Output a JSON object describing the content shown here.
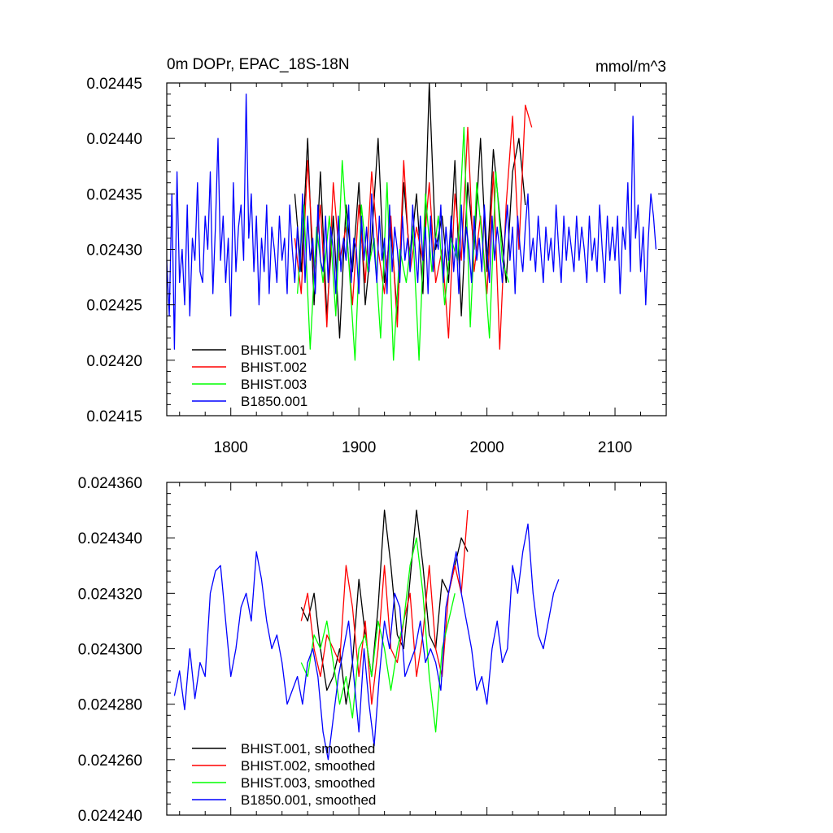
{
  "chart_data": [
    {
      "type": "line",
      "title": "0m DOPr, EPAC_18S-18N",
      "units": "mmol/m^3",
      "xlim": [
        1750,
        2140
      ],
      "ylim": [
        0.02415,
        0.02445
      ],
      "x_ticks": [
        1800,
        1900,
        2000,
        2100
      ],
      "x_tick_labels": [
        "1800",
        "1900",
        "2000",
        "2100"
      ],
      "y_ticks": [
        0.02415,
        0.0242,
        0.02425,
        0.0243,
        0.02435,
        0.0244,
        0.02445
      ],
      "y_tick_labels": [
        "0.02415",
        "0.02420",
        "0.02425",
        "0.02430",
        "0.02435",
        "0.02440",
        "0.02445"
      ],
      "legend_position": "bottom-left",
      "series": [
        {
          "name": "BHIST.001",
          "color": "#000000",
          "x_start": 1850,
          "x_step": 5,
          "values": [
            0.02435,
            0.02428,
            0.0244,
            0.02425,
            0.02437,
            0.02424,
            0.02433,
            0.02422,
            0.02434,
            0.02428,
            0.02436,
            0.02425,
            0.02431,
            0.0244,
            0.02427,
            0.02432,
            0.02424,
            0.02436,
            0.02429,
            0.02435,
            0.02426,
            0.02445,
            0.0243,
            0.02433,
            0.02427,
            0.02438,
            0.02424,
            0.02436,
            0.0243,
            0.0244,
            0.02428,
            0.02439,
            0.02433,
            0.02427,
            0.02437,
            0.0244,
            0.02434
          ]
        },
        {
          "name": "BHIST.002",
          "color": "#ff0000",
          "x_start": 1850,
          "x_step": 5,
          "values": [
            0.02431,
            0.02426,
            0.02438,
            0.02428,
            0.02434,
            0.02423,
            0.02436,
            0.02429,
            0.02432,
            0.02425,
            0.02434,
            0.02427,
            0.02437,
            0.0243,
            0.02426,
            0.02433,
            0.02423,
            0.02438,
            0.02428,
            0.02432,
            0.02429,
            0.02436,
            0.02427,
            0.0243,
            0.02422,
            0.02435,
            0.02429,
            0.02441,
            0.02428,
            0.02433,
            0.02426,
            0.02437,
            0.02421,
            0.02434,
            0.02442,
            0.0243,
            0.02443,
            0.02441
          ]
        },
        {
          "name": "BHIST.003",
          "color": "#00ff00",
          "x_start": 1852,
          "x_step": 5,
          "values": [
            0.02426,
            0.02434,
            0.02421,
            0.02432,
            0.02427,
            0.02433,
            0.02424,
            0.02438,
            0.02429,
            0.0242,
            0.02434,
            0.02428,
            0.02431,
            0.02422,
            0.02436,
            0.0242,
            0.0243,
            0.02427,
            0.02432,
            0.0242,
            0.02435,
            0.02428,
            0.02433,
            0.02425,
            0.02431,
            0.02429,
            0.02441,
            0.02423,
            0.02436,
            0.0243,
            0.02422,
            0.02437,
            0.02429,
            0.02427
          ]
        },
        {
          "name": "B1850.001",
          "color": "#0000ff",
          "x_start": 1750,
          "x_step": 2,
          "values": [
            0.02429,
            0.02424,
            0.02435,
            0.02421,
            0.02437,
            0.02427,
            0.0243,
            0.02425,
            0.02434,
            0.02424,
            0.02431,
            0.02429,
            0.02436,
            0.02428,
            0.02427,
            0.02433,
            0.0243,
            0.02437,
            0.02426,
            0.02432,
            0.0244,
            0.02429,
            0.02433,
            0.02427,
            0.02431,
            0.02424,
            0.02436,
            0.02428,
            0.02432,
            0.02434,
            0.02429,
            0.02444,
            0.02431,
            0.02435,
            0.02428,
            0.02433,
            0.02425,
            0.02431,
            0.02428,
            0.02434,
            0.02426,
            0.02432,
            0.0243,
            0.02427,
            0.02433,
            0.02429,
            0.02431,
            0.02426,
            0.02434,
            0.0243,
            0.02427,
            0.02432,
            0.02428,
            0.02435,
            0.02427,
            0.02433,
            0.02429,
            0.02431,
            0.02426,
            0.02434,
            0.02429,
            0.02428,
            0.02433,
            0.02427,
            0.02432,
            0.0243,
            0.02426,
            0.02433,
            0.02428,
            0.02431,
            0.02429,
            0.02434,
            0.02427,
            0.02431,
            0.0243,
            0.02426,
            0.02433,
            0.02429,
            0.02432,
            0.02428,
            0.02435,
            0.0243,
            0.02427,
            0.02433,
            0.02429,
            0.02431,
            0.02426,
            0.02434,
            0.02428,
            0.02432,
            0.0243,
            0.02427,
            0.02433,
            0.02429,
            0.02431,
            0.02428,
            0.02434,
            0.0243,
            0.02427,
            0.02433,
            0.02429,
            0.02432,
            0.02426,
            0.02433,
            0.02428,
            0.02431,
            0.0243,
            0.02434,
            0.02427,
            0.02432,
            0.02429,
            0.02433,
            0.02428,
            0.02431,
            0.02426,
            0.02434,
            0.02429,
            0.02432,
            0.0243,
            0.02427,
            0.02433,
            0.02429,
            0.02431,
            0.02428,
            0.02434,
            0.0243,
            0.02427,
            0.02433,
            0.02429,
            0.02432,
            0.0243,
            0.02427,
            0.02431,
            0.02434,
            0.02429,
            0.02432,
            0.02426,
            0.02433,
            0.0243,
            0.02428,
            0.02432,
            0.02435,
            0.02429,
            0.02431,
            0.02428,
            0.02433,
            0.0243,
            0.02427,
            0.02432,
            0.02429,
            0.02431,
            0.02428,
            0.02434,
            0.0243,
            0.02427,
            0.02433,
            0.02429,
            0.02432,
            0.0243,
            0.02428,
            0.02433,
            0.02429,
            0.02432,
            0.0243,
            0.02427,
            0.02433,
            0.02429,
            0.02431,
            0.02428,
            0.02434,
            0.0243,
            0.02427,
            0.02433,
            0.02429,
            0.02432,
            0.02429,
            0.02433,
            0.02426,
            0.02432,
            0.0243,
            0.02436,
            0.02428,
            0.02442,
            0.02431,
            0.02434,
            0.02428,
            0.02432,
            0.02425,
            0.02431,
            0.02435,
            0.02433,
            0.0243
          ]
        }
      ]
    },
    {
      "type": "line",
      "xlim": [
        1750,
        2140
      ],
      "ylim": [
        0.02424,
        0.02436
      ],
      "x_ticks": [
        1800,
        1900,
        2000,
        2100
      ],
      "y_ticks": [
        0.02424,
        0.02426,
        0.02428,
        0.0243,
        0.02432,
        0.02434,
        0.02436
      ],
      "y_tick_labels": [
        "0.024240",
        "0.024260",
        "0.024280",
        "0.024300",
        "0.024320",
        "0.024340",
        "0.024360"
      ],
      "legend_position": "bottom-left",
      "series": [
        {
          "name": "BHIST.001, smoothed",
          "color": "#000000",
          "x_start": 1855,
          "x_step": 5,
          "values": [
            0.024315,
            0.02431,
            0.02432,
            0.0243,
            0.024285,
            0.02429,
            0.0243,
            0.02428,
            0.024295,
            0.024325,
            0.024305,
            0.02429,
            0.024315,
            0.02435,
            0.02433,
            0.024305,
            0.0243,
            0.024325,
            0.02435,
            0.02433,
            0.024305,
            0.0243,
            0.024325,
            0.02432,
            0.02433,
            0.02434,
            0.024335
          ]
        },
        {
          "name": "BHIST.002, smoothed",
          "color": "#ff0000",
          "x_start": 1855,
          "x_step": 5,
          "values": [
            0.02431,
            0.02432,
            0.0243,
            0.02429,
            0.024305,
            0.0243,
            0.024295,
            0.02433,
            0.024315,
            0.02429,
            0.02431,
            0.02428,
            0.0243,
            0.02433,
            0.0243,
            0.024295,
            0.02431,
            0.02432,
            0.02429,
            0.024305,
            0.02433,
            0.0243,
            0.02429,
            0.02432,
            0.02433,
            0.02432,
            0.02435
          ]
        },
        {
          "name": "BHIST.003, smoothed",
          "color": "#00ff00",
          "x_start": 1855,
          "x_step": 5,
          "values": [
            0.024295,
            0.02429,
            0.024305,
            0.0243,
            0.02431,
            0.024295,
            0.02428,
            0.02429,
            0.024275,
            0.0243,
            0.024305,
            0.02429,
            0.02431,
            0.0243,
            0.024285,
            0.0243,
            0.02431,
            0.02433,
            0.02434,
            0.02432,
            0.02429,
            0.02427,
            0.0243,
            0.02431,
            0.02432
          ]
        },
        {
          "name": "B1850.001, smoothed",
          "color": "#0000ff",
          "x_start": 1756,
          "x_step": 4,
          "values": [
            0.024283,
            0.024292,
            0.024278,
            0.0243,
            0.024282,
            0.024295,
            0.02429,
            0.02432,
            0.024328,
            0.02433,
            0.02431,
            0.02429,
            0.0243,
            0.024315,
            0.02432,
            0.02431,
            0.024335,
            0.024325,
            0.02431,
            0.0243,
            0.024305,
            0.024295,
            0.02428,
            0.024285,
            0.02429,
            0.02428,
            0.024295,
            0.0243,
            0.02429,
            0.02427,
            0.02426,
            0.024275,
            0.02429,
            0.0243,
            0.02431,
            0.02429,
            0.02427,
            0.0243,
            0.02428,
            0.024265,
            0.02429,
            0.02431,
            0.0243,
            0.02432,
            0.024315,
            0.02429,
            0.024295,
            0.0243,
            0.02431,
            0.024295,
            0.0243,
            0.024295,
            0.024285,
            0.024315,
            0.024325,
            0.024335,
            0.02432,
            0.02431,
            0.0243,
            0.024285,
            0.02429,
            0.02428,
            0.0243,
            0.02431,
            0.024295,
            0.0243,
            0.02433,
            0.02432,
            0.024335,
            0.024345,
            0.02432,
            0.024305,
            0.0243,
            0.02431,
            0.02432,
            0.024325
          ]
        }
      ]
    }
  ]
}
